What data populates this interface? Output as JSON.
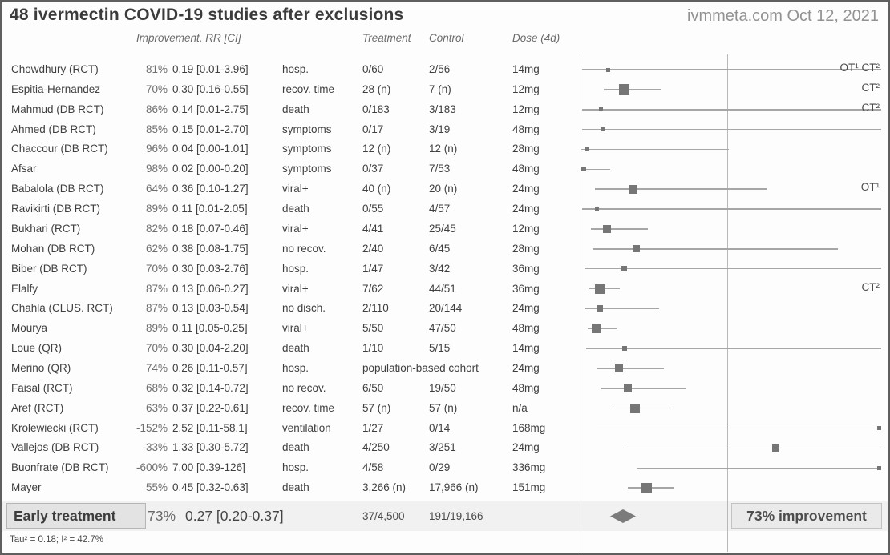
{
  "header": {
    "title": "48 ivermectin COVID-19 studies after exclusions",
    "source": "ivmmeta.com Oct 12, 2021"
  },
  "columns": {
    "improvement": "Improvement, RR [CI]",
    "treatment": "Treatment",
    "control": "Control",
    "dose": "Dose (4d)"
  },
  "chart_data": {
    "type": "forest",
    "title": "48 ivermectin COVID-19 studies after exclusions",
    "x_axis": {
      "scale": "linear",
      "rr_left_edge": 0,
      "rr_reference_line": 1.0,
      "rr_right_edge": 2.05,
      "grid": "reference-line-only"
    },
    "rows": [
      {
        "name": "Chowdhury (RCT)",
        "improvement": "81%",
        "rr": 0.19,
        "ci": [
          0.01,
          3.96
        ],
        "rr_text": "0.19 [0.01-3.96]",
        "outcome": "hosp.",
        "treatment": "0/60",
        "control": "2/56",
        "dose": "14mg",
        "weight": 5,
        "note": "OT¹ CT²"
      },
      {
        "name": "Espitia-Hernandez",
        "improvement": "70%",
        "rr": 0.3,
        "ci": [
          0.16,
          0.55
        ],
        "rr_text": "0.30 [0.16-0.55]",
        "outcome": "recov. time",
        "treatment": "28 (n)",
        "control": "7 (n)",
        "dose": "12mg",
        "weight": 13,
        "note": "CT²"
      },
      {
        "name": "Mahmud (DB RCT)",
        "improvement": "86%",
        "rr": 0.14,
        "ci": [
          0.01,
          2.75
        ],
        "rr_text": "0.14 [0.01-2.75]",
        "outcome": "death",
        "treatment": "0/183",
        "control": "3/183",
        "dose": "12mg",
        "weight": 5,
        "note": "CT²"
      },
      {
        "name": "Ahmed (DB RCT)",
        "improvement": "85%",
        "rr": 0.15,
        "ci": [
          0.01,
          2.7
        ],
        "rr_text": "0.15 [0.01-2.70]",
        "outcome": "symptoms",
        "treatment": "0/17",
        "control": "3/19",
        "dose": "48mg",
        "weight": 5,
        "note": ""
      },
      {
        "name": "Chaccour (DB RCT)",
        "improvement": "96%",
        "rr": 0.04,
        "ci": [
          0.0,
          1.01
        ],
        "rr_text": "0.04 [0.00-1.01]",
        "outcome": "symptoms",
        "treatment": "12 (n)",
        "control": "12 (n)",
        "dose": "28mg",
        "weight": 5,
        "note": ""
      },
      {
        "name": "Afsar",
        "improvement": "98%",
        "rr": 0.02,
        "ci": [
          0.0,
          0.2
        ],
        "rr_text": "0.02 [0.00-0.20]",
        "outcome": "symptoms",
        "treatment": "0/37",
        "control": "7/53",
        "dose": "48mg",
        "weight": 6,
        "note": ""
      },
      {
        "name": "Babalola (DB RCT)",
        "improvement": "64%",
        "rr": 0.36,
        "ci": [
          0.1,
          1.27
        ],
        "rr_text": "0.36 [0.10-1.27]",
        "outcome": "viral+",
        "treatment": "40 (n)",
        "control": "20 (n)",
        "dose": "24mg",
        "weight": 11,
        "note": "OT¹"
      },
      {
        "name": "Ravikirti (DB RCT)",
        "improvement": "89%",
        "rr": 0.11,
        "ci": [
          0.01,
          2.05
        ],
        "rr_text": "0.11 [0.01-2.05]",
        "outcome": "death",
        "treatment": "0/55",
        "control": "4/57",
        "dose": "24mg",
        "weight": 5,
        "note": ""
      },
      {
        "name": "Bukhari (RCT)",
        "improvement": "82%",
        "rr": 0.18,
        "ci": [
          0.07,
          0.46
        ],
        "rr_text": "0.18 [0.07-0.46]",
        "outcome": "viral+",
        "treatment": "4/41",
        "control": "25/45",
        "dose": "12mg",
        "weight": 10,
        "note": ""
      },
      {
        "name": "Mohan (DB RCT)",
        "improvement": "62%",
        "rr": 0.38,
        "ci": [
          0.08,
          1.75
        ],
        "rr_text": "0.38 [0.08-1.75]",
        "outcome": "no recov.",
        "treatment": "2/40",
        "control": "6/45",
        "dose": "28mg",
        "weight": 9,
        "note": ""
      },
      {
        "name": "Biber (DB RCT)",
        "improvement": "70%",
        "rr": 0.3,
        "ci": [
          0.03,
          2.76
        ],
        "rr_text": "0.30 [0.03-2.76]",
        "outcome": "hosp.",
        "treatment": "1/47",
        "control": "3/42",
        "dose": "36mg",
        "weight": 7,
        "note": ""
      },
      {
        "name": "Elalfy",
        "improvement": "87%",
        "rr": 0.13,
        "ci": [
          0.06,
          0.27
        ],
        "rr_text": "0.13 [0.06-0.27]",
        "outcome": "viral+",
        "treatment": "7/62",
        "control": "44/51",
        "dose": "36mg",
        "weight": 12,
        "note": "CT²"
      },
      {
        "name": "Chahla (CLUS. RCT)",
        "improvement": "87%",
        "rr": 0.13,
        "ci": [
          0.03,
          0.54
        ],
        "rr_text": "0.13 [0.03-0.54]",
        "outcome": "no disch.",
        "treatment": "2/110",
        "control": "20/144",
        "dose": "24mg",
        "weight": 8,
        "note": ""
      },
      {
        "name": "Mourya",
        "improvement": "89%",
        "rr": 0.11,
        "ci": [
          0.05,
          0.25
        ],
        "rr_text": "0.11 [0.05-0.25]",
        "outcome": "viral+",
        "treatment": "5/50",
        "control": "47/50",
        "dose": "48mg",
        "weight": 12,
        "note": ""
      },
      {
        "name": "Loue (QR)",
        "improvement": "70%",
        "rr": 0.3,
        "ci": [
          0.04,
          2.2
        ],
        "rr_text": "0.30 [0.04-2.20]",
        "outcome": "death",
        "treatment": "1/10",
        "control": "5/15",
        "dose": "14mg",
        "weight": 6,
        "note": ""
      },
      {
        "name": "Merino (QR)",
        "improvement": "74%",
        "rr": 0.26,
        "ci": [
          0.11,
          0.57
        ],
        "rr_text": "0.26 [0.11-0.57]",
        "outcome": "hosp.",
        "treatment": "population-based cohort",
        "control": "",
        "dose": "24mg",
        "weight": 10,
        "note": ""
      },
      {
        "name": "Faisal (RCT)",
        "improvement": "68%",
        "rr": 0.32,
        "ci": [
          0.14,
          0.72
        ],
        "rr_text": "0.32 [0.14-0.72]",
        "outcome": "no recov.",
        "treatment": "6/50",
        "control": "19/50",
        "dose": "48mg",
        "weight": 10,
        "note": ""
      },
      {
        "name": "Aref (RCT)",
        "improvement": "63%",
        "rr": 0.37,
        "ci": [
          0.22,
          0.61
        ],
        "rr_text": "0.37 [0.22-0.61]",
        "outcome": "recov. time",
        "treatment": "57 (n)",
        "control": "57 (n)",
        "dose": "n/a",
        "weight": 12,
        "note": ""
      },
      {
        "name": "Krolewiecki (RCT)",
        "improvement": "-152%",
        "rr": 2.52,
        "ci": [
          0.11,
          58.1
        ],
        "rr_text": "2.52 [0.11-58.1]",
        "outcome": "ventilation",
        "treatment": "1/27",
        "control": "0/14",
        "dose": "168mg",
        "weight": 5,
        "note": ""
      },
      {
        "name": "Vallejos (DB RCT)",
        "improvement": "-33%",
        "rr": 1.33,
        "ci": [
          0.3,
          5.72
        ],
        "rr_text": "1.33 [0.30-5.72]",
        "outcome": "death",
        "treatment": "4/250",
        "control": "3/251",
        "dose": "24mg",
        "weight": 9,
        "note": ""
      },
      {
        "name": "Buonfrate (DB RCT)",
        "improvement": "-600%",
        "rr": 7.0,
        "ci": [
          0.39,
          126
        ],
        "rr_text": "7.00 [0.39-126]",
        "outcome": "hosp.",
        "treatment": "4/58",
        "control": "0/29",
        "dose": "336mg",
        "weight": 5,
        "note": ""
      },
      {
        "name": "Mayer",
        "improvement": "55%",
        "rr": 0.45,
        "ci": [
          0.32,
          0.63
        ],
        "rr_text": "0.45 [0.32-0.63]",
        "outcome": "death",
        "treatment": "3,266 (n)",
        "control": "17,966 (n)",
        "dose": "151mg",
        "weight": 13,
        "note": ""
      }
    ],
    "summary": {
      "label": "Early treatment",
      "improvement": "73%",
      "rr": 0.27,
      "ci": [
        0.2,
        0.37
      ],
      "rr_text": "0.27 [0.20-0.37]",
      "treatment": "37/4,500",
      "control": "191/19,166",
      "improvement_label": "73% improvement"
    },
    "heterogeneity": "Tau² = 0.18; I² = 42.7%"
  }
}
